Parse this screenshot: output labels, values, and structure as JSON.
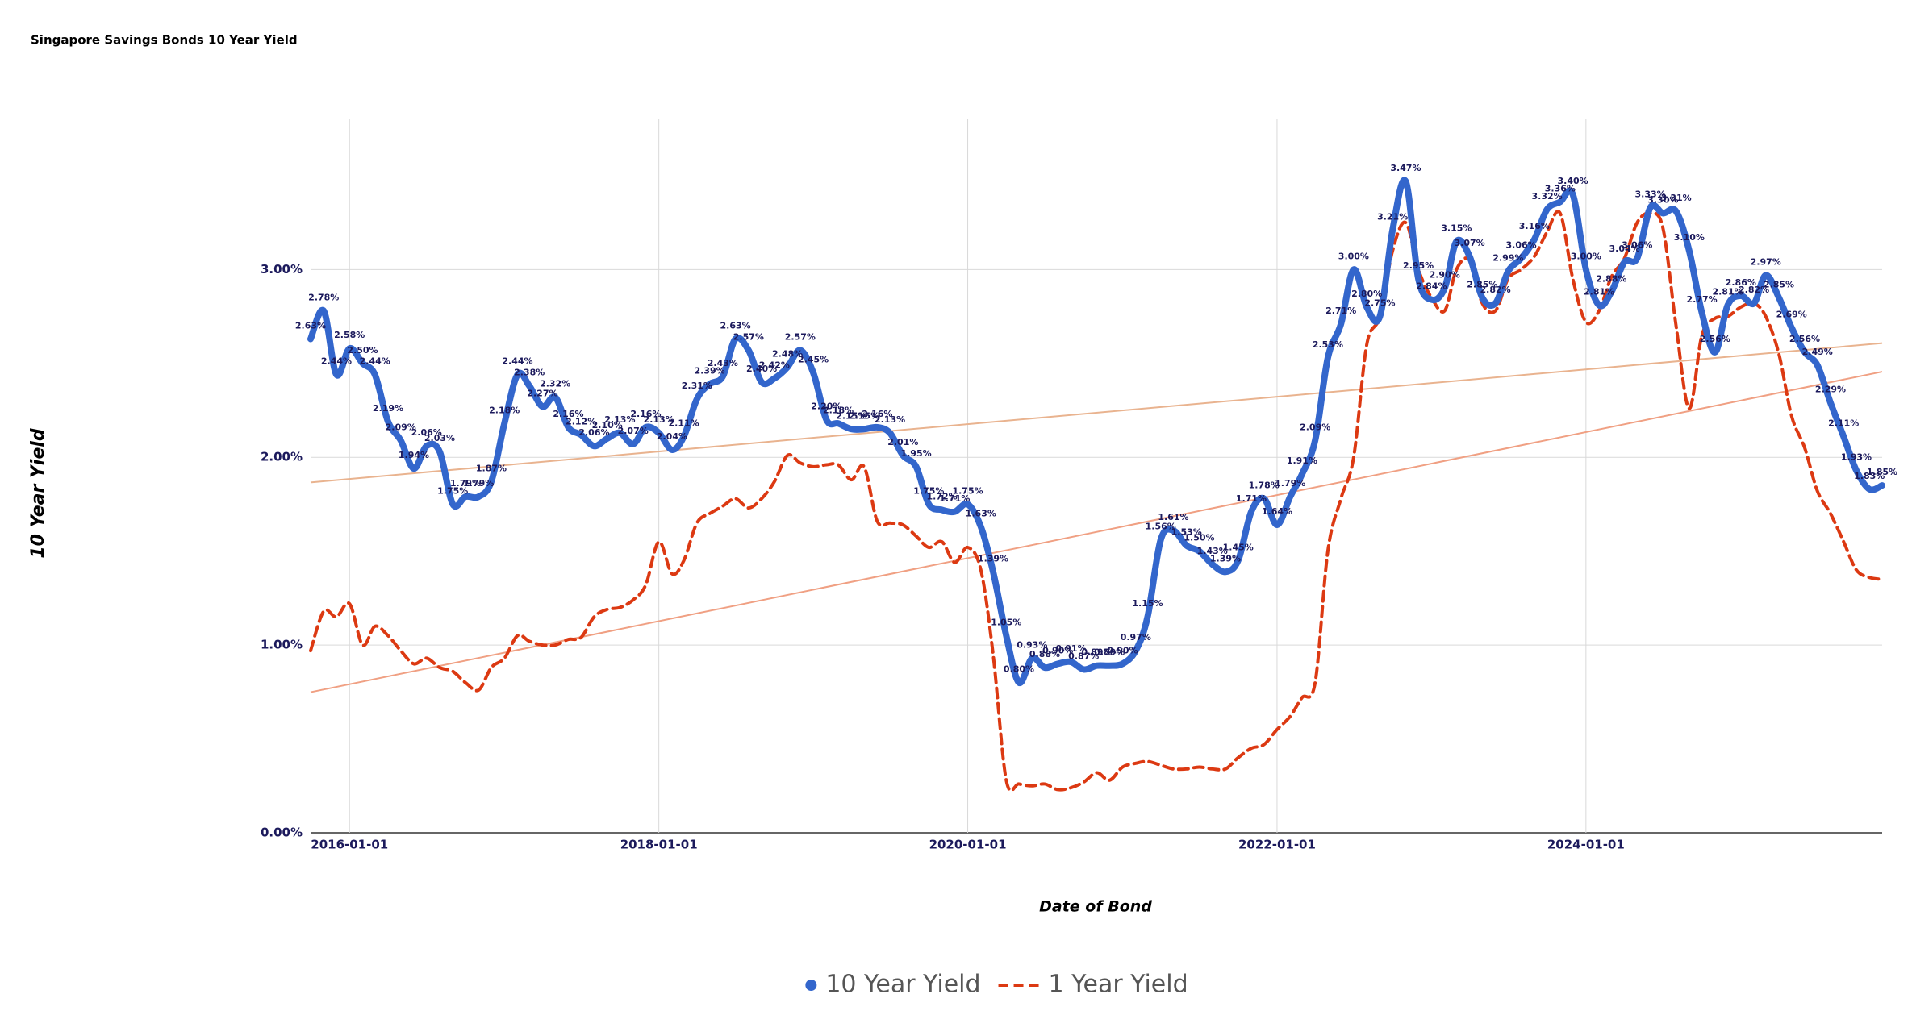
{
  "chart_data": {
    "type": "line",
    "title": "Singapore Savings Bonds 10 Year Yield",
    "xlabel": "Date of Bond",
    "ylabel": "10 Year Yield",
    "x": [
      "2015-10-01",
      "2015-11-01",
      "2015-12-01",
      "2016-01-01",
      "2016-02-01",
      "2016-03-01",
      "2016-04-01",
      "2016-05-01",
      "2016-06-01",
      "2016-07-01",
      "2016-08-01",
      "2016-09-01",
      "2016-10-01",
      "2016-11-01",
      "2016-12-01",
      "2017-01-01",
      "2017-02-01",
      "2017-03-01",
      "2017-04-01",
      "2017-05-01",
      "2017-06-01",
      "2017-07-01",
      "2017-08-01",
      "2017-09-01",
      "2017-10-01",
      "2017-11-01",
      "2017-12-01",
      "2018-01-01",
      "2018-02-01",
      "2018-03-01",
      "2018-04-01",
      "2018-05-01",
      "2018-06-01",
      "2018-07-01",
      "2018-08-01",
      "2018-09-01",
      "2018-10-01",
      "2018-11-01",
      "2018-12-01",
      "2019-01-01",
      "2019-02-01",
      "2019-03-01",
      "2019-04-01",
      "2019-05-01",
      "2019-06-01",
      "2019-07-01",
      "2019-08-01",
      "2019-09-01",
      "2019-10-01",
      "2019-11-01",
      "2019-12-01",
      "2020-01-01",
      "2020-02-01",
      "2020-03-01",
      "2020-04-01",
      "2020-05-01",
      "2020-06-01",
      "2020-07-01",
      "2020-08-01",
      "2020-09-01",
      "2020-10-01",
      "2020-11-01",
      "2020-12-01",
      "2021-01-01",
      "2021-02-01",
      "2021-03-01",
      "2021-04-01",
      "2021-05-01",
      "2021-06-01",
      "2021-07-01",
      "2021-08-01",
      "2021-09-01",
      "2021-10-01",
      "2021-11-01",
      "2021-12-01",
      "2022-01-01",
      "2022-02-01",
      "2022-03-01",
      "2022-04-01",
      "2022-05-01",
      "2022-06-01",
      "2022-07-01",
      "2022-08-01",
      "2022-09-01",
      "2022-10-01",
      "2022-11-01",
      "2022-12-01",
      "2023-01-01",
      "2023-02-01",
      "2023-03-01",
      "2023-04-01",
      "2023-05-01",
      "2023-06-01",
      "2023-07-01",
      "2023-08-01",
      "2023-09-01",
      "2023-10-01",
      "2023-11-01",
      "2023-12-01",
      "2024-01-01",
      "2024-02-01",
      "2024-03-01",
      "2024-04-01",
      "2024-05-01",
      "2024-06-01",
      "2024-07-01",
      "2024-08-01",
      "2024-09-01",
      "2024-10-01",
      "2024-11-01",
      "2024-12-01",
      "2025-01-01",
      "2025-02-01",
      "2025-03-01",
      "2025-04-01",
      "2025-05-01",
      "2025-06-01",
      "2025-07-01",
      "2025-08-01",
      "2025-09-01",
      "2025-10-01",
      "2025-11-01",
      "2025-12-01"
    ],
    "series": [
      {
        "name": "10 Year Yield",
        "color": "#3366cc",
        "style": "solid",
        "values": [
          2.63,
          2.78,
          2.44,
          2.58,
          2.5,
          2.44,
          2.19,
          2.09,
          1.94,
          2.06,
          2.03,
          1.75,
          1.79,
          1.79,
          1.87,
          2.18,
          2.44,
          2.38,
          2.27,
          2.32,
          2.16,
          2.12,
          2.06,
          2.1,
          2.13,
          2.07,
          2.16,
          2.13,
          2.04,
          2.11,
          2.31,
          2.39,
          2.43,
          2.63,
          2.57,
          2.4,
          2.42,
          2.48,
          2.57,
          2.45,
          2.2,
          2.18,
          2.15,
          2.15,
          2.16,
          2.13,
          2.01,
          1.95,
          1.75,
          1.72,
          1.71,
          1.75,
          1.63,
          1.39,
          1.05,
          0.8,
          0.93,
          0.88,
          0.9,
          0.91,
          0.87,
          0.89,
          0.89,
          0.9,
          0.97,
          1.15,
          1.56,
          1.61,
          1.53,
          1.5,
          1.43,
          1.39,
          1.45,
          1.71,
          1.78,
          1.64,
          1.79,
          1.91,
          2.09,
          2.53,
          2.71,
          3.0,
          2.8,
          2.75,
          3.21,
          3.47,
          2.95,
          2.84,
          2.9,
          3.15,
          3.07,
          2.85,
          2.82,
          2.99,
          3.06,
          3.16,
          3.32,
          3.36,
          3.4,
          3.0,
          2.81,
          2.88,
          3.04,
          3.06,
          3.33,
          3.3,
          3.31,
          3.1,
          2.77,
          2.56,
          2.81,
          2.86,
          2.82,
          2.97,
          2.85,
          2.69,
          2.56,
          2.49,
          2.29,
          2.11,
          1.93,
          1.83,
          1.85
        ],
        "value_labels": [
          "2.63%",
          "2.78%",
          "2.44%",
          "2.58%",
          "2.50%",
          "2.44%",
          "2.19%",
          "2.09%",
          "1.94%",
          "2.06%",
          "2.03%",
          "1.75%",
          "1.79%",
          "1.79%",
          "1.87%",
          "2.18%",
          "2.44%",
          "2.38%",
          "2.27%",
          "2.32%",
          "2.16%",
          "2.12%",
          "2.06%",
          "2.10%",
          "2.13%",
          "2.07%",
          "2.16%",
          "2.13%",
          "2.04%",
          "2.11%",
          "2.31%",
          "2.39%",
          "2.43%",
          "2.63%",
          "2.57%",
          "2.40%",
          "2.42%",
          "2.48%",
          "2.57%",
          "2.45%",
          "2.20%",
          "2.18%",
          "2.15%",
          "2.15%",
          "2.16%",
          "2.13%",
          "2.01%",
          "1.95%",
          "1.75%",
          "1.72%",
          "1.71%",
          "1.75%",
          "1.63%",
          "1.39%",
          "1.05%",
          "0.80%",
          "0.93%",
          "0.88%",
          "0.90%",
          "0.91%",
          "0.87%",
          "0.89%",
          "0.89%",
          "0.90%",
          "0.97%",
          "1.15%",
          "1.56%",
          "1.61%",
          "1.53%",
          "1.50%",
          "1.43%",
          "1.39%",
          "1.45%",
          "1.71%",
          "1.78%",
          "1.64%",
          "1.79%",
          "1.91%",
          "2.09%",
          "2.53%",
          "2.71%",
          "3.00%",
          "2.80%",
          "2.75%",
          "3.21%",
          "3.47%",
          "2.95%",
          "2.84%",
          "2.90%",
          "3.15%",
          "3.07%",
          "2.85%",
          "2.82%",
          "2.99%",
          "3.06%",
          "3.16%",
          "3.32%",
          "3.36%",
          "3.40%",
          "3.00%",
          "2.81%",
          "2.88%",
          "3.04%",
          "3.06%",
          "3.33%",
          "3.30%",
          "3.31%",
          "3.10%",
          "2.77%",
          "2.56%",
          "2.81%",
          "2.86%",
          "2.82%",
          "2.97%",
          "2.85%",
          "2.69%",
          "2.56%",
          "2.49%",
          "2.29%",
          "2.11%",
          "1.93%",
          "1.83%",
          "1.85%"
        ]
      },
      {
        "name": "1 Year Yield",
        "color": "#dc3912",
        "style": "dashed",
        "values": [
          0.97,
          1.18,
          1.15,
          1.22,
          1.0,
          1.1,
          1.05,
          0.97,
          0.9,
          0.93,
          0.88,
          0.86,
          0.8,
          0.76,
          0.88,
          0.93,
          1.05,
          1.02,
          1.0,
          1.0,
          1.03,
          1.04,
          1.15,
          1.19,
          1.2,
          1.24,
          1.32,
          1.55,
          1.38,
          1.45,
          1.65,
          1.7,
          1.74,
          1.78,
          1.73,
          1.78,
          1.87,
          2.01,
          1.97,
          1.95,
          1.96,
          1.96,
          1.88,
          1.95,
          1.66,
          1.65,
          1.64,
          1.58,
          1.52,
          1.55,
          1.44,
          1.52,
          1.4,
          0.95,
          0.28,
          0.26,
          0.25,
          0.26,
          0.23,
          0.24,
          0.27,
          0.32,
          0.28,
          0.35,
          0.37,
          0.38,
          0.36,
          0.34,
          0.34,
          0.35,
          0.34,
          0.34,
          0.4,
          0.45,
          0.47,
          0.55,
          0.62,
          0.72,
          0.8,
          1.5,
          1.78,
          2.0,
          2.6,
          2.75,
          3.1,
          3.25,
          3.0,
          2.85,
          2.78,
          3.0,
          3.05,
          2.82,
          2.78,
          2.95,
          3.0,
          3.07,
          3.2,
          3.3,
          2.95,
          2.72,
          2.78,
          2.96,
          3.06,
          3.25,
          3.3,
          3.22,
          2.7,
          2.26,
          2.65,
          2.74,
          2.75,
          2.8,
          2.82,
          2.75,
          2.55,
          2.22,
          2.05,
          1.82,
          1.7,
          1.55,
          1.4,
          1.36,
          1.35
        ]
      }
    ],
    "trendline_colors": [
      "#e9b38f",
      "#f0a083"
    ],
    "xlim": [
      "2015-10-01",
      "2025-12-01"
    ],
    "xticks": [
      "2016-01-01",
      "2018-01-01",
      "2020-01-01",
      "2022-01-01",
      "2024-01-01"
    ],
    "ylim": [
      0,
      3.8
    ],
    "yticks": [
      {
        "value": 0,
        "label": "0.00%"
      },
      {
        "value": 1,
        "label": "1.00%"
      },
      {
        "value": 2,
        "label": "2.00%"
      },
      {
        "value": 3,
        "label": "3.00%"
      }
    ],
    "grid": true,
    "legend": "bottom"
  }
}
